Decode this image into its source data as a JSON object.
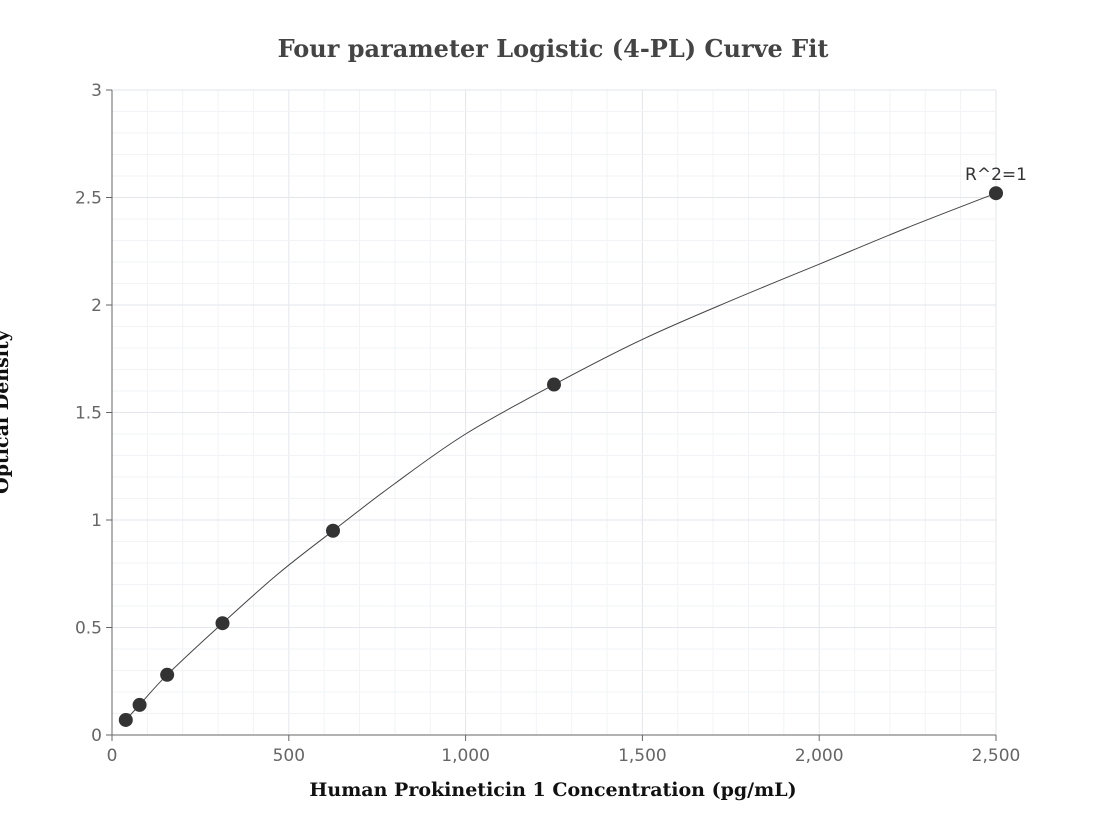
{
  "chart_data": {
    "type": "scatter",
    "title": "Four parameter Logistic (4-PL) Curve Fit",
    "xlabel": "Human Prokineticin 1 Concentration (pg/mL)",
    "ylabel": "Optical Density",
    "xlim": [
      0,
      2500
    ],
    "ylim": [
      0,
      3
    ],
    "x_ticks": [
      0,
      500,
      1000,
      1500,
      2000,
      2500
    ],
    "x_tick_labels": [
      "0",
      "500",
      "1,000",
      "1,500",
      "2,000",
      "2,500"
    ],
    "y_ticks": [
      0,
      0.5,
      1,
      1.5,
      2,
      2.5,
      3
    ],
    "y_tick_labels": [
      "0",
      "0.5",
      "1",
      "1.5",
      "2",
      "2.5",
      "3"
    ],
    "grid": true,
    "series": [
      {
        "points": [
          {
            "x": 39,
            "y": 0.07
          },
          {
            "x": 78,
            "y": 0.14
          },
          {
            "x": 156,
            "y": 0.28
          },
          {
            "x": 312.5,
            "y": 0.52
          },
          {
            "x": 625,
            "y": 0.95
          },
          {
            "x": 1250,
            "y": 1.63
          },
          {
            "x": 2500,
            "y": 2.52
          }
        ]
      }
    ],
    "fit_curve": {
      "x": [
        39,
        78,
        156,
        312.5,
        470,
        625,
        800,
        1000,
        1250,
        1500,
        1750,
        2000,
        2250,
        2500
      ],
      "y": [
        0.07,
        0.14,
        0.28,
        0.52,
        0.75,
        0.95,
        1.17,
        1.4,
        1.63,
        1.84,
        2.02,
        2.19,
        2.36,
        2.52
      ]
    },
    "annotations": [
      {
        "text": "R^2=1",
        "x": 2500,
        "y": 2.52
      }
    ],
    "colors": {
      "marker": "#333333",
      "line": "#444444",
      "grid": "#e6e9ee",
      "axis": "#666666"
    }
  }
}
